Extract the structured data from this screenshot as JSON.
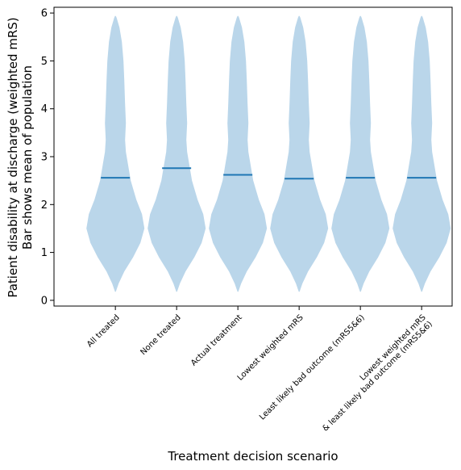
{
  "chart_data": {
    "type": "violin",
    "xlabel": "Treatment decision scenario",
    "ylabel": [
      "Patient disability at discharge (weighted mRS)",
      "Bar shows mean of population"
    ],
    "ylim": [
      -0.12,
      6.12
    ],
    "yticks": [
      0,
      1,
      2,
      3,
      4,
      5,
      6
    ],
    "categories": [
      [
        "All treated"
      ],
      [
        "None treated"
      ],
      [
        "Actual treatment"
      ],
      [
        "Lowest weighted mRS"
      ],
      [
        "Least likely bad outcome (mRS5&6)"
      ],
      [
        "Lowest weighted mRS",
        "& least likely bad outcome (mRS5&6)"
      ]
    ],
    "means": [
      2.56,
      2.76,
      2.62,
      2.54,
      2.56,
      2.56
    ],
    "violin_range": [
      0.18,
      5.94
    ],
    "violin_color": "#bad6ea",
    "mean_line_color": "#1f77b4",
    "grid": false,
    "legend": "none"
  }
}
